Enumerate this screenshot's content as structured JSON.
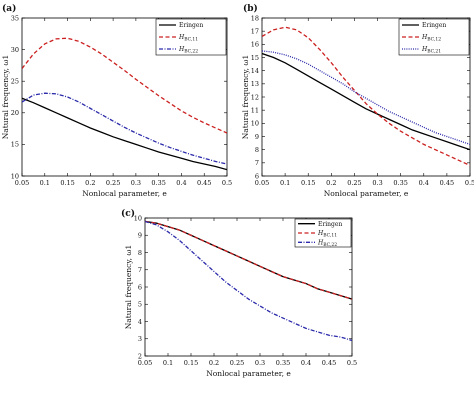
{
  "chart_data": [
    {
      "panel": "(a)",
      "type": "line",
      "xlabel": "Nonlocal parameter, e",
      "ylabel": "Natural frequency, ω1",
      "xlim": [
        0.05,
        0.5
      ],
      "ylim": [
        10,
        35
      ],
      "xticks": [
        "0.05",
        "0.1",
        "0.15",
        "0.2",
        "0.25",
        "0.3",
        "0.35",
        "0.4",
        "0.45",
        "0.5"
      ],
      "yticks": [
        "10",
        "15",
        "20",
        "25",
        "30",
        "35"
      ],
      "legend_position": "top-right",
      "x": [
        0.05,
        0.075,
        0.1,
        0.125,
        0.15,
        0.175,
        0.2,
        0.225,
        0.25,
        0.275,
        0.3,
        0.325,
        0.35,
        0.375,
        0.4,
        0.425,
        0.45,
        0.475,
        0.5
      ],
      "series": [
        {
          "name": "Eringen",
          "name_main": "Eringen",
          "name_sub": "",
          "color": "#000000",
          "dash": "",
          "width": 1.3,
          "values": [
            22.3,
            21.6,
            20.8,
            20.0,
            19.2,
            18.4,
            17.6,
            16.9,
            16.2,
            15.6,
            15.0,
            14.4,
            13.8,
            13.3,
            12.8,
            12.3,
            11.9,
            11.5,
            11.0
          ]
        },
        {
          "name": "H_BC,11",
          "name_main": "H",
          "name_sub": "BC,11",
          "color": "#cc2020",
          "dash": "4,2.5",
          "width": 1.3,
          "values": [
            27.0,
            29.3,
            30.9,
            31.7,
            31.8,
            31.3,
            30.4,
            29.3,
            28.0,
            26.7,
            25.3,
            24.0,
            22.7,
            21.5,
            20.3,
            19.3,
            18.4,
            17.6,
            16.8
          ]
        },
        {
          "name": "H_BC,22",
          "name_main": "H",
          "name_sub": "BC,22",
          "color": "#2a2aaa",
          "dash": "4,1.5,1,1.5",
          "width": 1.3,
          "values": [
            21.7,
            22.8,
            23.1,
            23.0,
            22.5,
            21.7,
            20.7,
            19.7,
            18.7,
            17.7,
            16.8,
            16.0,
            15.2,
            14.5,
            13.9,
            13.3,
            12.8,
            12.3,
            11.9
          ]
        }
      ]
    },
    {
      "panel": "(b)",
      "type": "line",
      "xlabel": "Nonlocal parameter, e",
      "ylabel": "Natural frequency, ω1",
      "xlim": [
        0.05,
        0.5
      ],
      "ylim": [
        6,
        18
      ],
      "xticks": [
        "0.05",
        "0.1",
        "0.15",
        "0.2",
        "0.25",
        "0.3",
        "0.35",
        "0.4",
        "0.45",
        "0.5"
      ],
      "yticks": [
        "6",
        "7",
        "8",
        "9",
        "10",
        "11",
        "12",
        "13",
        "14",
        "15",
        "16",
        "17",
        "18"
      ],
      "legend_position": "top-right",
      "x": [
        0.05,
        0.075,
        0.1,
        0.125,
        0.15,
        0.175,
        0.2,
        0.225,
        0.25,
        0.275,
        0.3,
        0.325,
        0.35,
        0.375,
        0.4,
        0.425,
        0.45,
        0.475,
        0.5
      ],
      "series": [
        {
          "name": "Eringen",
          "name_main": "Eringen",
          "name_sub": "",
          "color": "#000000",
          "dash": "",
          "width": 1.3,
          "values": [
            15.3,
            15.0,
            14.6,
            14.1,
            13.6,
            13.1,
            12.6,
            12.1,
            11.6,
            11.1,
            10.7,
            10.3,
            9.9,
            9.5,
            9.2,
            8.9,
            8.6,
            8.3,
            8.0
          ]
        },
        {
          "name": "H_BC,12",
          "name_main": "H",
          "name_sub": "BC,12",
          "color": "#cc2020",
          "dash": "4,2.5",
          "width": 1.3,
          "values": [
            16.6,
            17.1,
            17.3,
            17.1,
            16.5,
            15.6,
            14.6,
            13.5,
            12.5,
            11.5,
            10.7,
            10.0,
            9.4,
            8.9,
            8.4,
            8.0,
            7.6,
            7.2,
            6.8
          ]
        },
        {
          "name": "H_BC,21",
          "name_main": "H",
          "name_sub": "BC,21",
          "color": "#2a2aaa",
          "dash": "1,1.2",
          "width": 1.3,
          "values": [
            15.5,
            15.4,
            15.2,
            14.9,
            14.5,
            14.0,
            13.5,
            13.0,
            12.4,
            11.9,
            11.4,
            10.9,
            10.5,
            10.1,
            9.7,
            9.3,
            9.0,
            8.7,
            8.4
          ]
        }
      ]
    },
    {
      "panel": "(c)",
      "type": "line",
      "xlabel": "Nonlocal parameter, e",
      "ylabel": "Natural frequency, ω1",
      "xlim": [
        0.05,
        0.5
      ],
      "ylim": [
        2,
        10
      ],
      "xticks": [
        "0.05",
        "0.1",
        "0.15",
        "0.2",
        "0.25",
        "0.3",
        "0.35",
        "0.4",
        "0.45",
        "0.5"
      ],
      "yticks": [
        "2",
        "3",
        "4",
        "5",
        "6",
        "7",
        "8",
        "9",
        "10"
      ],
      "legend_position": "top-right",
      "x": [
        0.05,
        0.075,
        0.1,
        0.125,
        0.15,
        0.175,
        0.2,
        0.225,
        0.25,
        0.275,
        0.3,
        0.325,
        0.35,
        0.375,
        0.4,
        0.425,
        0.45,
        0.475,
        0.5
      ],
      "series": [
        {
          "name": "Eringen",
          "name_main": "Eringen",
          "name_sub": "",
          "color": "#000000",
          "dash": "",
          "width": 1.3,
          "values": [
            9.8,
            9.7,
            9.5,
            9.3,
            9.0,
            8.7,
            8.4,
            8.1,
            7.8,
            7.5,
            7.2,
            6.9,
            6.6,
            6.4,
            6.2,
            5.9,
            5.7,
            5.5,
            5.3
          ]
        },
        {
          "name": "H_BC,11",
          "name_main": "H",
          "name_sub": "BC,11",
          "color": "#cc2020",
          "dash": "4,2.5",
          "width": 1.3,
          "values": [
            9.8,
            9.7,
            9.5,
            9.3,
            9.0,
            8.7,
            8.4,
            8.1,
            7.8,
            7.5,
            7.2,
            6.9,
            6.6,
            6.4,
            6.2,
            5.9,
            5.7,
            5.5,
            5.3
          ]
        },
        {
          "name": "H_BC,22",
          "name_main": "H",
          "name_sub": "BC,22",
          "color": "#2a2aaa",
          "dash": "4,1.5,1,1.5",
          "width": 1.3,
          "values": [
            9.8,
            9.6,
            9.2,
            8.7,
            8.1,
            7.5,
            6.9,
            6.3,
            5.8,
            5.3,
            4.9,
            4.5,
            4.2,
            3.9,
            3.6,
            3.4,
            3.2,
            3.1,
            2.9
          ]
        }
      ]
    }
  ]
}
